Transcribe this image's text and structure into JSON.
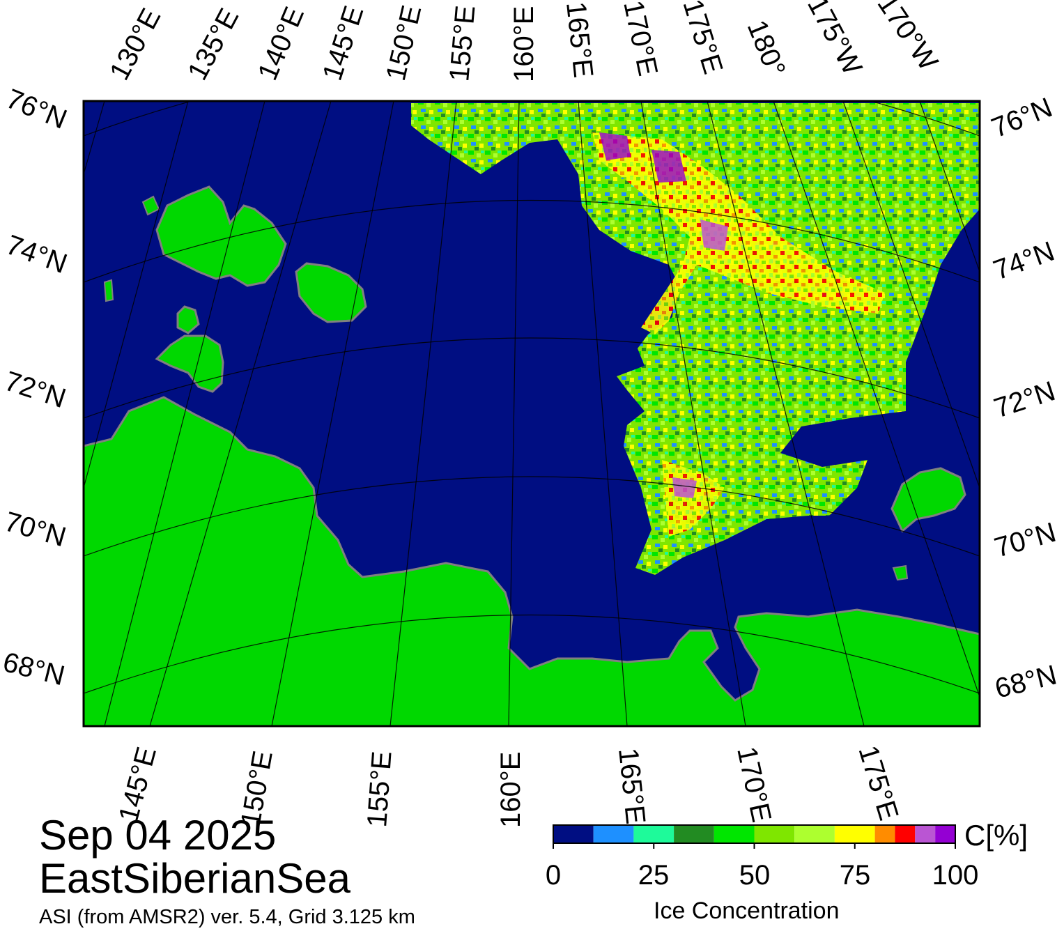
{
  "title": {
    "date": "Sep 04 2025",
    "region": "EastSiberianSea",
    "subtitle": "ASI (from AMSR2) ver. 5.4,  Grid 3.125 km"
  },
  "colors": {
    "ocean": "#000e82",
    "land": "#00d800",
    "coast_gray": "#808080",
    "frame": "#000000"
  },
  "map": {
    "top_lon_labels": [
      "130°E",
      "135°E",
      "140°E",
      "145°E",
      "150°E",
      "155°E",
      "160°E",
      "165°E",
      "170°E",
      "175°E",
      "180°",
      "175°W",
      "170°W"
    ],
    "bottom_lon_labels": [
      "145°E",
      "150°E",
      "155°E",
      "160°E",
      "165°E",
      "170°E",
      "175°E"
    ],
    "left_lat_labels": [
      "76°N",
      "74°N",
      "72°N",
      "70°N",
      "68°N"
    ],
    "right_lat_labels": [
      "76°N",
      "74°N",
      "72°N",
      "70°N",
      "68°N"
    ]
  },
  "colorbar": {
    "unit_label": "C[%]",
    "title": "Ice Concentration",
    "ticks": [
      "0",
      "25",
      "50",
      "75",
      "100"
    ],
    "range": [
      0,
      100
    ],
    "classes": [
      {
        "from": 0,
        "to": 10,
        "color": "#000e82"
      },
      {
        "from": 10,
        "to": 20,
        "color": "#1e90ff"
      },
      {
        "from": 20,
        "to": 30,
        "color": "#1efa9a"
      },
      {
        "from": 30,
        "to": 40,
        "color": "#228b22"
      },
      {
        "from": 40,
        "to": 50,
        "color": "#00e600"
      },
      {
        "from": 50,
        "to": 60,
        "color": "#7fe600"
      },
      {
        "from": 60,
        "to": 70,
        "color": "#adff2f"
      },
      {
        "from": 70,
        "to": 80,
        "color": "#ffff00"
      },
      {
        "from": 80,
        "to": 85,
        "color": "#ff8c00"
      },
      {
        "from": 85,
        "to": 90,
        "color": "#ff0000"
      },
      {
        "from": 90,
        "to": 95,
        "color": "#ba55d3"
      },
      {
        "from": 95,
        "to": 100,
        "color": "#9400d3"
      }
    ]
  }
}
